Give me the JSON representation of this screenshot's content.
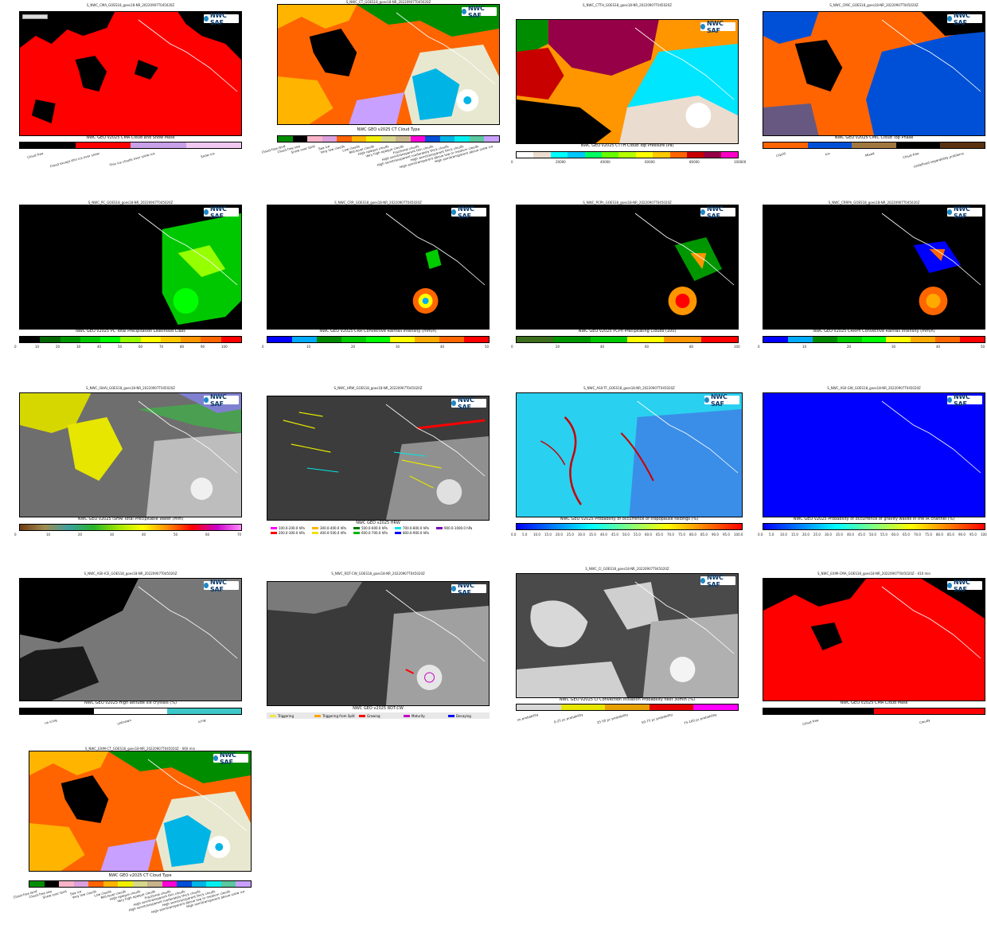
{
  "logo_text": "NWC SAF",
  "panels": [
    {
      "id": "cma",
      "file": "S_NWC_CMA_GOES18_goes18-NR_20220907T045020Z",
      "title": "NWC GEO v2025 CMA Cloud and Snow Mask",
      "labels": [
        "Cloud free",
        "Cloud except thin ice over snow",
        "Thin ice clouds over snow ice",
        "Snow ice"
      ]
    },
    {
      "id": "ct",
      "file": "S_NWC_CT_GOES18_goes18-NR_20220907T045020Z",
      "title": "NWC GEO v2025 CT Cloud Type",
      "labels": [
        "Cloud-free land",
        "Cloud-free sea",
        "Snow over land",
        "Sea ice",
        "Very low clouds",
        "Low clouds",
        "Mid-level clouds",
        "High opaque clouds",
        "Very high opaque clouds",
        "Fractional clouds",
        "High semitransparent thin clouds",
        "High semitransparent moderately thick clouds",
        "High semitransparent thick clouds",
        "High semitransparent above low or medium clouds",
        "High semitransparent above snow ice"
      ]
    },
    {
      "id": "ctth",
      "file": "S_NWC_CTTH_GOES18_goes18-NR_20220907T045020Z",
      "title": "NWC GEO v2025 CTTH Cloud Top Pressure (Pa)",
      "labels": [
        "0",
        "20000",
        "40000",
        "60000",
        "80000",
        "100000"
      ]
    },
    {
      "id": "cmic",
      "file": "S_NWC_CMIC_GOES18_goes18-NR_20220907T045020Z",
      "title": "NWC GEO v2025 CMIC Cloud Top Phase",
      "labels": [
        "Liquid",
        "Ice",
        "Mixed",
        "Cloud-free",
        "Undefined separability problems"
      ]
    },
    {
      "id": "pc",
      "file": "S_NWC_PC_GOES18_goes18-NR_20220907T045020Z",
      "title": "NWC GEO v2025 PC Total Precipitation Likelihood Class",
      "labels": [
        "0",
        "10",
        "20",
        "30",
        "40",
        "50",
        "60",
        "70",
        "80",
        "90",
        "100"
      ]
    },
    {
      "id": "crr",
      "file": "S_NWC_CRR_GOES18_goes18-NR_20220907T045020Z",
      "title": "NWC GEO v2025 CRR Convective Rainfall Intensity (mm/h)",
      "labels": [
        "0",
        "10",
        "20",
        "30",
        "40",
        "50"
      ]
    },
    {
      "id": "pcph",
      "file": "S_NWC_PCPh_GOES18_goes18-NR_20220907T045020Z",
      "title": "NWC GEO v2025 PCPh Precipitating Clouds (100)",
      "labels": [
        "0",
        "20",
        "40",
        "60",
        "80",
        "100"
      ]
    },
    {
      "id": "crrph",
      "file": "S_NWC_CRRPh_GOES18_goes18-NR_20220907T045020Z",
      "title": "NWC GEO v2025 CRRPh Convective Rainfall Intensity (mm/h)",
      "labels": [
        "0",
        "10",
        "20",
        "30",
        "40",
        "50"
      ]
    },
    {
      "id": "ishai",
      "file": "S_NWC_iSHAI_GOES18_goes18-NR_20220907T045020Z",
      "title": "NWC GEO v2025 iSHAI Total Precipitable Water (mm)",
      "labels": [
        "0",
        "10",
        "20",
        "30",
        "40",
        "50",
        "60",
        "70"
      ]
    },
    {
      "id": "hrw",
      "file": "S_NWC_HRW_GOES18_goes18-NR_20220907T045020Z",
      "title": "NWC GEO v2025 HRW",
      "labels": [
        "100.0-200.0 hPa",
        "200.0-300.0 hPa",
        "300.0-400.0 hPa",
        "400.0-500.0 hPa",
        "500.0-600.0 hPa",
        "600.0-700.0 hPa",
        "700.0-800.0 hPa",
        "800.0-900.0 hPa",
        "900.0-1000.0 hPa"
      ]
    },
    {
      "id": "asiitf",
      "file": "S_NWC_ASII-TF_GOES18_goes18-NR_20220907T045020Z",
      "title": "NWC GEO v2025 Probability of occurrence of tropopause foldings (%)",
      "labels": [
        "0.0",
        "5.0",
        "10.0",
        "15.0",
        "20.0",
        "25.0",
        "30.0",
        "35.0",
        "40.0",
        "45.0",
        "50.0",
        "55.0",
        "60.0",
        "65.0",
        "70.0",
        "75.0",
        "80.0",
        "85.0",
        "90.0",
        "95.0",
        "100.0"
      ]
    },
    {
      "id": "asiigw",
      "file": "S_NWC_ASII-GW_GOES18_goes18-NR_20220907T045020Z",
      "title": "NWC GEO v2025 Probability of occurrence of gravity waves in the IR channel (%)",
      "labels": [
        "0.0",
        "5.0",
        "10.0",
        "15.0",
        "20.0",
        "25.0",
        "30.0",
        "35.0",
        "40.0",
        "45.0",
        "50.0",
        "55.0",
        "60.0",
        "65.0",
        "70.0",
        "75.0",
        "80.0",
        "85.0",
        "90.0",
        "95.0",
        "100.0"
      ]
    },
    {
      "id": "asiice",
      "file": "S_NWC_ASII-ICE_GOES18_goes18-NR_20220907T045020Z",
      "title": "NWC GEO v2025 High altitude ice crystals  (%)",
      "labels": [
        "no icing",
        "unknown",
        "icing"
      ]
    },
    {
      "id": "rdt",
      "file": "S_NWC_RDT-CW_GOES18_goes18-NR_20220907T045020Z",
      "title": "NWC GEO v2025 RDT-CW",
      "labels": [
        "Triggering",
        "Triggering from Split",
        "Growing",
        "Maturity",
        "Decaying"
      ]
    },
    {
      "id": "ci",
      "file": "S_NWC_CI_GOES18_goes18-NR_20220907T045020Z",
      "title": "NWC GEO v2025 CI Convection Initiation Probability next 30min (%)",
      "labels": [
        "no probability",
        "0-25 pc probability",
        "25-50 pc probability",
        "50-75 pc probability",
        "75-100 pc probability"
      ]
    },
    {
      "id": "ewcma",
      "file": "S_NWC_EXIM-CMA_GOES18_goes18-NR_20220907T045020Z - 010 min",
      "title": "NWC GEO v2025 CMA Cloud Mask",
      "labels": [
        "Cloud free",
        "Cloudy"
      ]
    },
    {
      "id": "ewct",
      "file": "S_NWC_EXIM-CT_GOES18_goes18-NR_20220907T045020Z - 060 min",
      "title": "NWC GEO v2025 CT Cloud Type",
      "labels": [
        "Cloud-free land",
        "Cloud-free sea",
        "Snow over land",
        "Sea ice",
        "Very low clouds",
        "Low clouds",
        "Mid-level clouds",
        "High opaque clouds",
        "Very high opaque clouds",
        "Fractional clouds",
        "High semitransparent thin clouds",
        "High semitransparent moderately thick clouds",
        "High semitransparent thick clouds",
        "High semitransparent above low or medium clouds",
        "High semitransparent above snow ice"
      ]
    }
  ],
  "colors": {
    "cma": [
      "#000000",
      "#ff0000",
      "#c8a0e8",
      "#f0c8f0"
    ],
    "ct": [
      "#008c00",
      "#000000",
      "#fab4c8",
      "#dca0dc",
      "#ff6400",
      "#ffb400",
      "#f0f000",
      "#d7d78c",
      "#c8b48c",
      "#ff00d7",
      "#0050d7",
      "#00b4e6",
      "#00f0f0",
      "#5ac8a0",
      "#c8a0ff"
    ],
    "ctth": [
      "#ffffff",
      "#eadccf",
      "#00ffff",
      "#00c8ff",
      "#00ff64",
      "#66ff00",
      "#b4ff00",
      "#ffff00",
      "#ffc800",
      "#ff6400",
      "#c80000",
      "#960046",
      "#ff00c8"
    ],
    "cmic": [
      "#ff6400",
      "#0050d7",
      "#a07840",
      "#000000",
      "#5a3210"
    ],
    "pc": [
      "#000000",
      "#006400",
      "#009600",
      "#00c800",
      "#00ff00",
      "#96ff00",
      "#ffff00",
      "#ffc800",
      "#ff9600",
      "#ff6400",
      "#ff0000"
    ],
    "crr": [
      "#0000ff",
      "#00aaff",
      "#008800",
      "#00cc00",
      "#00ff00",
      "#ffff00",
      "#ffaa00",
      "#ff6600",
      "#ff0000"
    ],
    "pcph": [
      "#3c6e1e",
      "#009600",
      "#00c800",
      "#ffff00",
      "#ff9600",
      "#ff0000"
    ],
    "ci": [
      "#d8d8d8",
      "#e6e600",
      "#e6a000",
      "#e60000",
      "#ff00ff"
    ],
    "ice": [
      "#000000",
      "#ffffff",
      "#3cc8c8"
    ],
    "ewcma": [
      "#000000",
      "#ff0000"
    ],
    "hrw": [
      "#ff00ff",
      "#ff0000",
      "#ffb400",
      "#f0e000",
      "#007800",
      "#00b400",
      "#00e6e6",
      "#0000ff",
      "#7800b4"
    ],
    "rdt": [
      "#f0e650",
      "#ffa500",
      "#ff0000",
      "#c800c8",
      "#0000ff"
    ]
  }
}
